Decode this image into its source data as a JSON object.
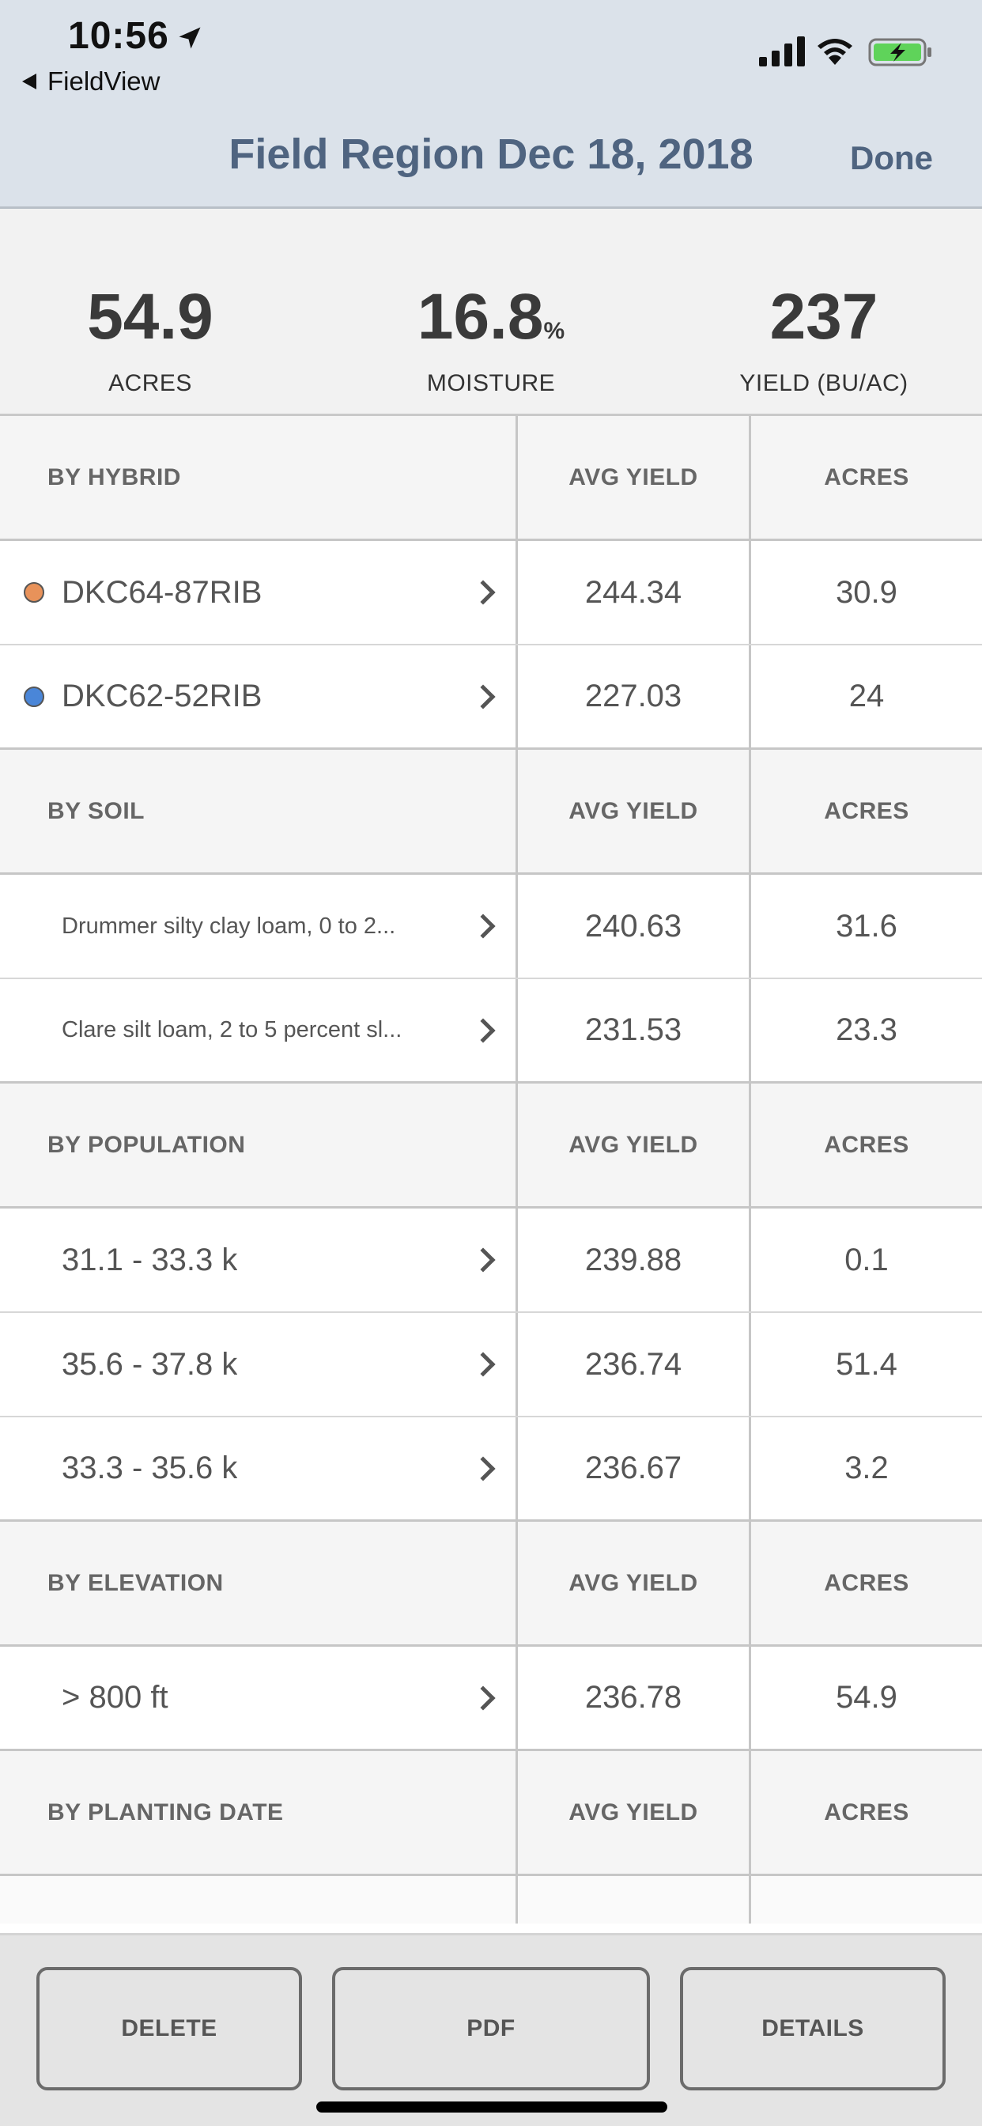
{
  "status_bar": {
    "time": "10:56",
    "back_app": "FieldView"
  },
  "nav": {
    "title": "Field Region Dec 18, 2018",
    "done_label": "Done"
  },
  "summary": {
    "acres": {
      "value": "54.9",
      "unit": "",
      "label": "ACRES"
    },
    "moisture": {
      "value": "16.8",
      "unit": "%",
      "label": "MOISTURE"
    },
    "yield": {
      "value": "237",
      "unit": "",
      "label": "YIELD (BU/AC)"
    }
  },
  "sections": [
    {
      "title": "BY HYBRID",
      "col2": "AVG YIELD",
      "col3": "ACRES",
      "rows": [
        {
          "name": "DKC64-87RIB",
          "avg_yield": "244.34",
          "acres": "30.9",
          "dot_color": "#e8925a"
        },
        {
          "name": "DKC62-52RIB",
          "avg_yield": "227.03",
          "acres": "24",
          "dot_color": "#4a86d8"
        }
      ]
    },
    {
      "title": "BY SOIL",
      "col2": "AVG YIELD",
      "col3": "ACRES",
      "rows": [
        {
          "name": "Drummer silty clay loam, 0 to 2...",
          "avg_yield": "240.63",
          "acres": "31.6"
        },
        {
          "name": "Clare silt loam, 2 to 5 percent sl...",
          "avg_yield": "231.53",
          "acres": "23.3"
        }
      ]
    },
    {
      "title": "BY POPULATION",
      "col2": "AVG YIELD",
      "col3": "ACRES",
      "rows": [
        {
          "name": "31.1 - 33.3 k",
          "avg_yield": "239.88",
          "acres": "0.1"
        },
        {
          "name": "35.6 - 37.8 k",
          "avg_yield": "236.74",
          "acres": "51.4"
        },
        {
          "name": "33.3 - 35.6 k",
          "avg_yield": "236.67",
          "acres": "3.2"
        }
      ]
    },
    {
      "title": "BY ELEVATION",
      "col2": "AVG YIELD",
      "col3": "ACRES",
      "rows": [
        {
          "name": "> 800 ft",
          "avg_yield": "236.78",
          "acres": "54.9"
        }
      ]
    },
    {
      "title": "BY PLANTING DATE",
      "col2": "AVG YIELD",
      "col3": "ACRES",
      "rows": []
    }
  ],
  "actions": {
    "delete": "DELETE",
    "pdf": "PDF",
    "details": "DETAILS"
  },
  "colors": {
    "header_bg": "#dbe2ea",
    "title_color": "#4f6480",
    "battery_green": "#5fd35a"
  },
  "icons": [
    "location-arrow-icon",
    "back-triangle-icon",
    "signal-icon",
    "wifi-icon",
    "battery-charging-icon",
    "chevron-right-icon"
  ]
}
